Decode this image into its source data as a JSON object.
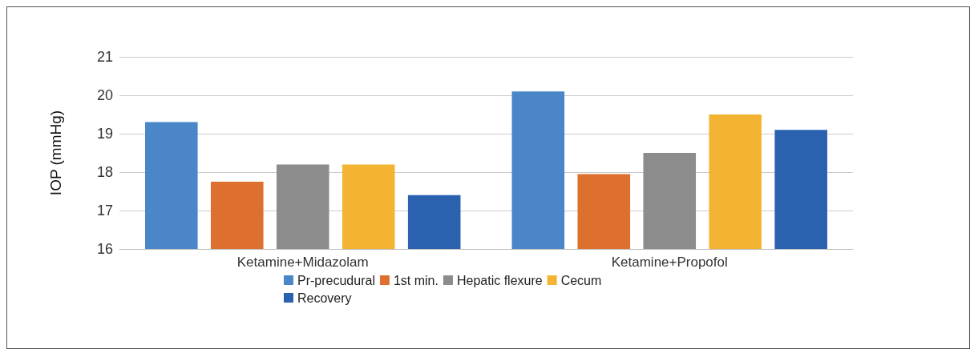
{
  "chart_data": {
    "type": "bar",
    "ylabel": "IOP (mmHg)",
    "categories": [
      "Ketamine+Midazolam",
      "Ketamine+Propofol"
    ],
    "series": [
      {
        "name": "Pr-precudural",
        "color": "#4a86c8",
        "values": [
          19.3,
          20.1
        ]
      },
      {
        "name": "1st min.",
        "color": "#dd6f2f",
        "values": [
          17.75,
          17.95
        ]
      },
      {
        "name": "Hepatic flexure",
        "color": "#8c8c8c",
        "values": [
          18.2,
          18.5
        ]
      },
      {
        "name": "Cecum",
        "color": "#f4b433",
        "values": [
          18.2,
          19.5
        ]
      },
      {
        "name": "Recovery",
        "color": "#2a62b0",
        "values": [
          17.4,
          19.1
        ]
      }
    ],
    "ylim": [
      16,
      21
    ],
    "yticks": [
      16,
      17,
      18,
      19,
      20,
      21
    ],
    "grid": "y",
    "legend": "bottom"
  }
}
